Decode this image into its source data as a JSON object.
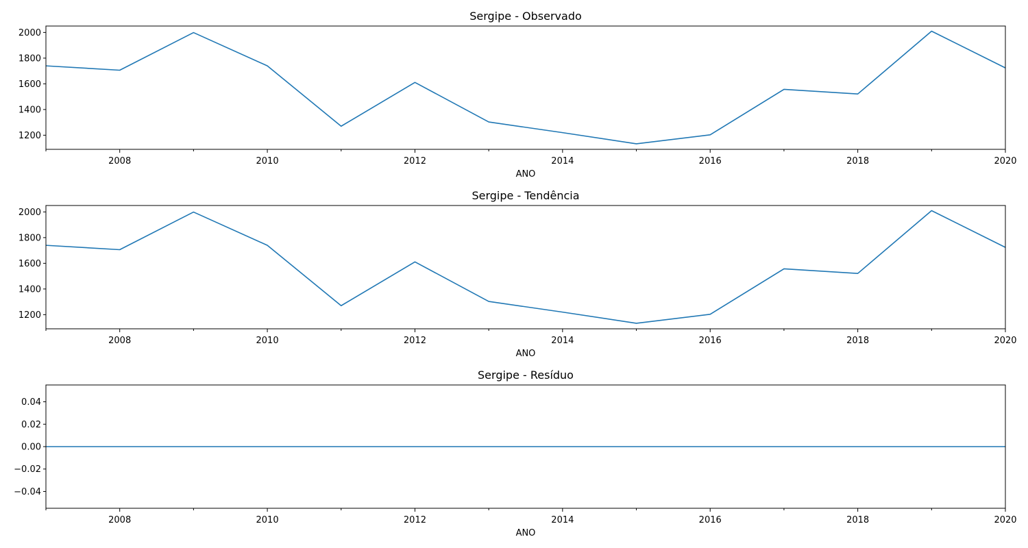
{
  "chart_data": [
    {
      "type": "line",
      "title": "Sergipe - Observado",
      "xlabel": "ANO",
      "ylabel": "",
      "xlim": [
        2007,
        2020
      ],
      "ylim": [
        1090,
        2050
      ],
      "xticks_major": [
        2008,
        2010,
        2012,
        2014,
        2016,
        2018,
        2020
      ],
      "xticks_minor": [
        2009,
        2011,
        2013,
        2015,
        2017,
        2019
      ],
      "yticks": [
        1200,
        1400,
        1600,
        1800,
        2000
      ],
      "ytick_labels": [
        "1200",
        "1400",
        "1600",
        "1800",
        "2000"
      ],
      "grid": false,
      "series": [
        {
          "color": "#1f77b4",
          "x": [
            2007,
            2008,
            2009,
            2010,
            2011,
            2012,
            2013,
            2014,
            2015,
            2016,
            2017,
            2018,
            2019,
            2020
          ],
          "values": [
            1740,
            1706,
            1999,
            1740,
            1270,
            1611,
            1303,
            1220,
            1133,
            1203,
            1557,
            1521,
            2010,
            1724
          ]
        }
      ]
    },
    {
      "type": "line",
      "title": "Sergipe - Tendência",
      "xlabel": "ANO",
      "ylabel": "",
      "xlim": [
        2007,
        2020
      ],
      "ylim": [
        1090,
        2050
      ],
      "xticks_major": [
        2008,
        2010,
        2012,
        2014,
        2016,
        2018,
        2020
      ],
      "xticks_minor": [
        2009,
        2011,
        2013,
        2015,
        2017,
        2019
      ],
      "yticks": [
        1200,
        1400,
        1600,
        1800,
        2000
      ],
      "ytick_labels": [
        "1200",
        "1400",
        "1600",
        "1800",
        "2000"
      ],
      "grid": false,
      "series": [
        {
          "color": "#1f77b4",
          "x": [
            2007,
            2008,
            2009,
            2010,
            2011,
            2012,
            2013,
            2014,
            2015,
            2016,
            2017,
            2018,
            2019,
            2020
          ],
          "values": [
            1740,
            1706,
            1999,
            1740,
            1270,
            1611,
            1303,
            1220,
            1133,
            1203,
            1557,
            1521,
            2010,
            1724
          ]
        }
      ]
    },
    {
      "type": "line",
      "title": "Sergipe - Resíduo",
      "xlabel": "ANO",
      "ylabel": "",
      "xlim": [
        2007,
        2020
      ],
      "ylim": [
        -0.055,
        0.055
      ],
      "xticks_major": [
        2008,
        2010,
        2012,
        2014,
        2016,
        2018,
        2020
      ],
      "xticks_minor": [
        2009,
        2011,
        2013,
        2015,
        2017,
        2019
      ],
      "yticks": [
        -0.04,
        -0.02,
        0,
        0.02,
        0.04
      ],
      "ytick_labels": [
        "−0.04",
        "−0.02",
        "0.00",
        "0.02",
        "0.04"
      ],
      "grid": false,
      "series": [
        {
          "color": "#1f77b4",
          "x": [
            2007,
            2008,
            2009,
            2010,
            2011,
            2012,
            2013,
            2014,
            2015,
            2016,
            2017,
            2018,
            2019,
            2020
          ],
          "values": [
            0,
            0,
            0,
            0,
            0,
            0,
            0,
            0,
            0,
            0,
            0,
            0,
            0,
            0
          ]
        }
      ]
    }
  ]
}
